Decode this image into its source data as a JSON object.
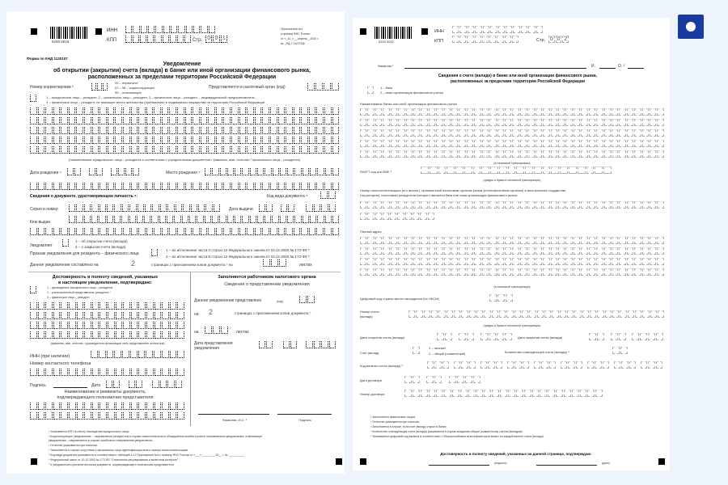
{
  "page1": {
    "barcode_number": "5200   5015",
    "inn_label": "ИНН",
    "kpp_label": "КПП",
    "page_label": "Стр.",
    "page_digits": [
      "0",
      "0",
      "1"
    ],
    "appendix": [
      "Приложение №1",
      "к приказу ФНС России",
      "от «_24_» __апреля__2020 г.",
      "№ _ЕД-7-14/273@"
    ],
    "form_code": "Форма по КНД 1120107",
    "title": [
      "Уведомление",
      "об открытии (закрытии) счета (вклада) в банке или иной организации финансового рынка,",
      "расположенных за пределами территории Российской Федерации"
    ],
    "correction_label": "Номер корректировки ²",
    "correction_options": [
      "00 – первичное",
      "01 – 98 – корректирующее",
      "99 – отменяющее"
    ],
    "tax_authority_label": "Представляется в налоговый орган (код)",
    "person_type_options": [
      "1 – юридическое лицо – резидент, 2 – физическое лицо – резидент, 3 – физическое лицо – резидент – индивидуальный предприниматель,",
      "4 – физическое лицо – резидент, не имеющее места жительства (пребывания) и недвижимого имущества на территории Российской Федерации"
    ],
    "name_caption": "(наименование юридического лица – резидента в соответствии с учредительным документом / фамилия, имя, отчество ³ физического лица – резидента)",
    "birth_date_label": "Дата рождения ⁴",
    "birth_place_label": "Место рождения ⁴",
    "id_doc_heading": "Сведения о документе, удостоверяющем личность ⁴:",
    "doc_type_code_label": "Код вида документа ⁵",
    "series_number_label": "Серия и номер",
    "issue_date_label": "Дата выдачи",
    "issued_by_label": "Кем выдан",
    "notifies_label": "Уведомляет",
    "notifies_options": [
      "1 – об открытии счета (вклада)",
      "2 – о закрытии счета (вклада)"
    ],
    "sign_label": "Признак уведомления для резидента – физического лица",
    "sign_options": [
      "1 – во исполнение части 2 статьи 12 Федерального закона от 10.12.2003 № 173-ФЗ ⁶",
      "2 – во исполнение части 8 статьи 12 Федерального закона от 10.12.2003 № 173-ФЗ ⁶"
    ],
    "pages_label": "Данное уведомление составлено на",
    "pages_value": "2",
    "pages_suffix": "страницах с приложением копии документа ⁷ на",
    "sheets_label": "листах",
    "confirm_heading": [
      "Достоверность и полноту сведений, указанных",
      "в настоящем уведомлении, подтверждаю:"
    ],
    "confirm_options": [
      "1 – руководитель юридического лица – резидента",
      "2 – уполномоченный представитель резидента ⁷",
      "3 – физическое лицо – резидент"
    ],
    "fio_caption": "(фамилия, имя, отчество ³ руководителя организации либо представителя полностью)",
    "inn_optional_label": "ИНН (при наличии)",
    "phone_label": "Номер контактного телефона",
    "signature_label": "Подпись",
    "date_label": "Дата",
    "rep_doc_heading": [
      "Наименование и реквизиты документа,",
      "подтверждающего полномочия представителя"
    ],
    "tax_heading": "Заполняется работником налогового органа",
    "tax_subheading": "Сведения о представлении уведомления",
    "submitted_label": "Данное уведомление представлено",
    "submitted_code": "(код)",
    "on_label": "на",
    "tax_pages_value": "2",
    "tax_pages_suffix": "страницах с приложением копии документа ⁷",
    "tax_sheets_label": "листах",
    "submit_date_label": [
      "Дата представления",
      "уведомления"
    ],
    "fio_short_caption": "Фамилия, И.О. ³",
    "sign_caption": "Подпись",
    "footnotes": [
      "¹ Указывается КПП по месту нахождения юридического лица.",
      "² Корректирующее уведомление – направляется резидентом в случае самостоятельного обнаружения ошибки в ранее направленном уведомлении, отменяющее",
      "   уведомление – направляется в случае ошибочного направления уведомления.",
      "³ Отчество указывается при наличии.",
      "⁴ Заполняется в случае отсутствия у физического лица идентификационного номера налогоплательщика.",
      "⁵ Код вида документа указывается в соответствии с таблицей 4.12 Приложения №4 к приказу ФНС России от «___» ________ 20__ г. № __________.",
      "⁶ Федеральный закон от 10.12.2003 № 173-ФЗ \"О валютном регулировании и валютном контроле\"",
      "⁷ К уведомлению прилагается копия документа, подтверждающего полномочия представителя."
    ]
  },
  "page2": {
    "barcode_number": "5200   5022",
    "inn_label": "ИНН",
    "kpp_label": "КПП",
    "page_label": "Стр.",
    "page_digits": [
      "0",
      "0",
      "2"
    ],
    "surname_label": "Фамилия ¹",
    "name_label": "И.",
    "patronymic_label": "О. ²",
    "title": [
      "Сведения о счете (вкладе) в банке или иной организации финансового рынка,",
      "расположенных за пределами территории Российской Федерации"
    ],
    "org_type_options": [
      "1 – банк",
      "2 – иная организация финансового рынка"
    ],
    "bank_name_label": "Наименование банка или иной организации финансового рынка",
    "latin_caption": "(в латинской транскрипции)",
    "swift_label": "SWIFT код или БИК ³",
    "swift_caption": "(цифры и буквы в латинской транскрипции)",
    "taxpayer_no_label": [
      "Номер налогоплательщика (его аналог), присвоенный налоговым органом (иным уполномоченным органом) в иностранном государстве",
      "(территории), налоговым резидентом которого является банк или иная организация финансового рынка"
    ],
    "address_label": "Полный адрес",
    "address_caption": "(в латинской транскрипции)",
    "country_code_label": "Цифровой код страны места нахождения (по ОКСМ)",
    "account_no_label": [
      "Номер счета",
      "(вклада)"
    ],
    "account_caption": "(цифры и буквы в латинской транскрипции)",
    "open_date_label": "Дата открытия счета (вклада)",
    "close_date_label": "Дата закрытия счета (вклада)",
    "account_type_label": "Счет (вклад)",
    "account_type_options": [
      "1 – личный",
      "2 – общий (совместный)"
    ],
    "co_owners_label": "Количество совладельцев счета (вклада) ⁴",
    "currency_label": "Код валюты счета (вклада) ⁵",
    "contract_date_label": "Дата договора",
    "contract_no_label": "Номер договора",
    "footnotes": [
      "¹ Заполняется физическим лицом.",
      "² Отчество указывается при наличии.",
      "³ Заполняется в случае, если счет (вклад) открыт в банке.",
      "⁴ Количество совладельцев счета (вклада) указывается в случае владения общим (совместным) счетом (вкладом).",
      "⁵ Указывается цифровой код валюты в соответствии с Общероссийским классификатором валют по каждой валюте счета (вклада)."
    ],
    "confirm_heading": "Достоверность и полноту сведений, указанных на данной странице, подтверждаю:",
    "signature_caption": "(подпись)",
    "date_caption": "(дата)"
  },
  "colors": {
    "background": "#eef4fb",
    "badge": "#1a3aa0"
  },
  "icons": {
    "badge": "circle-icon"
  }
}
